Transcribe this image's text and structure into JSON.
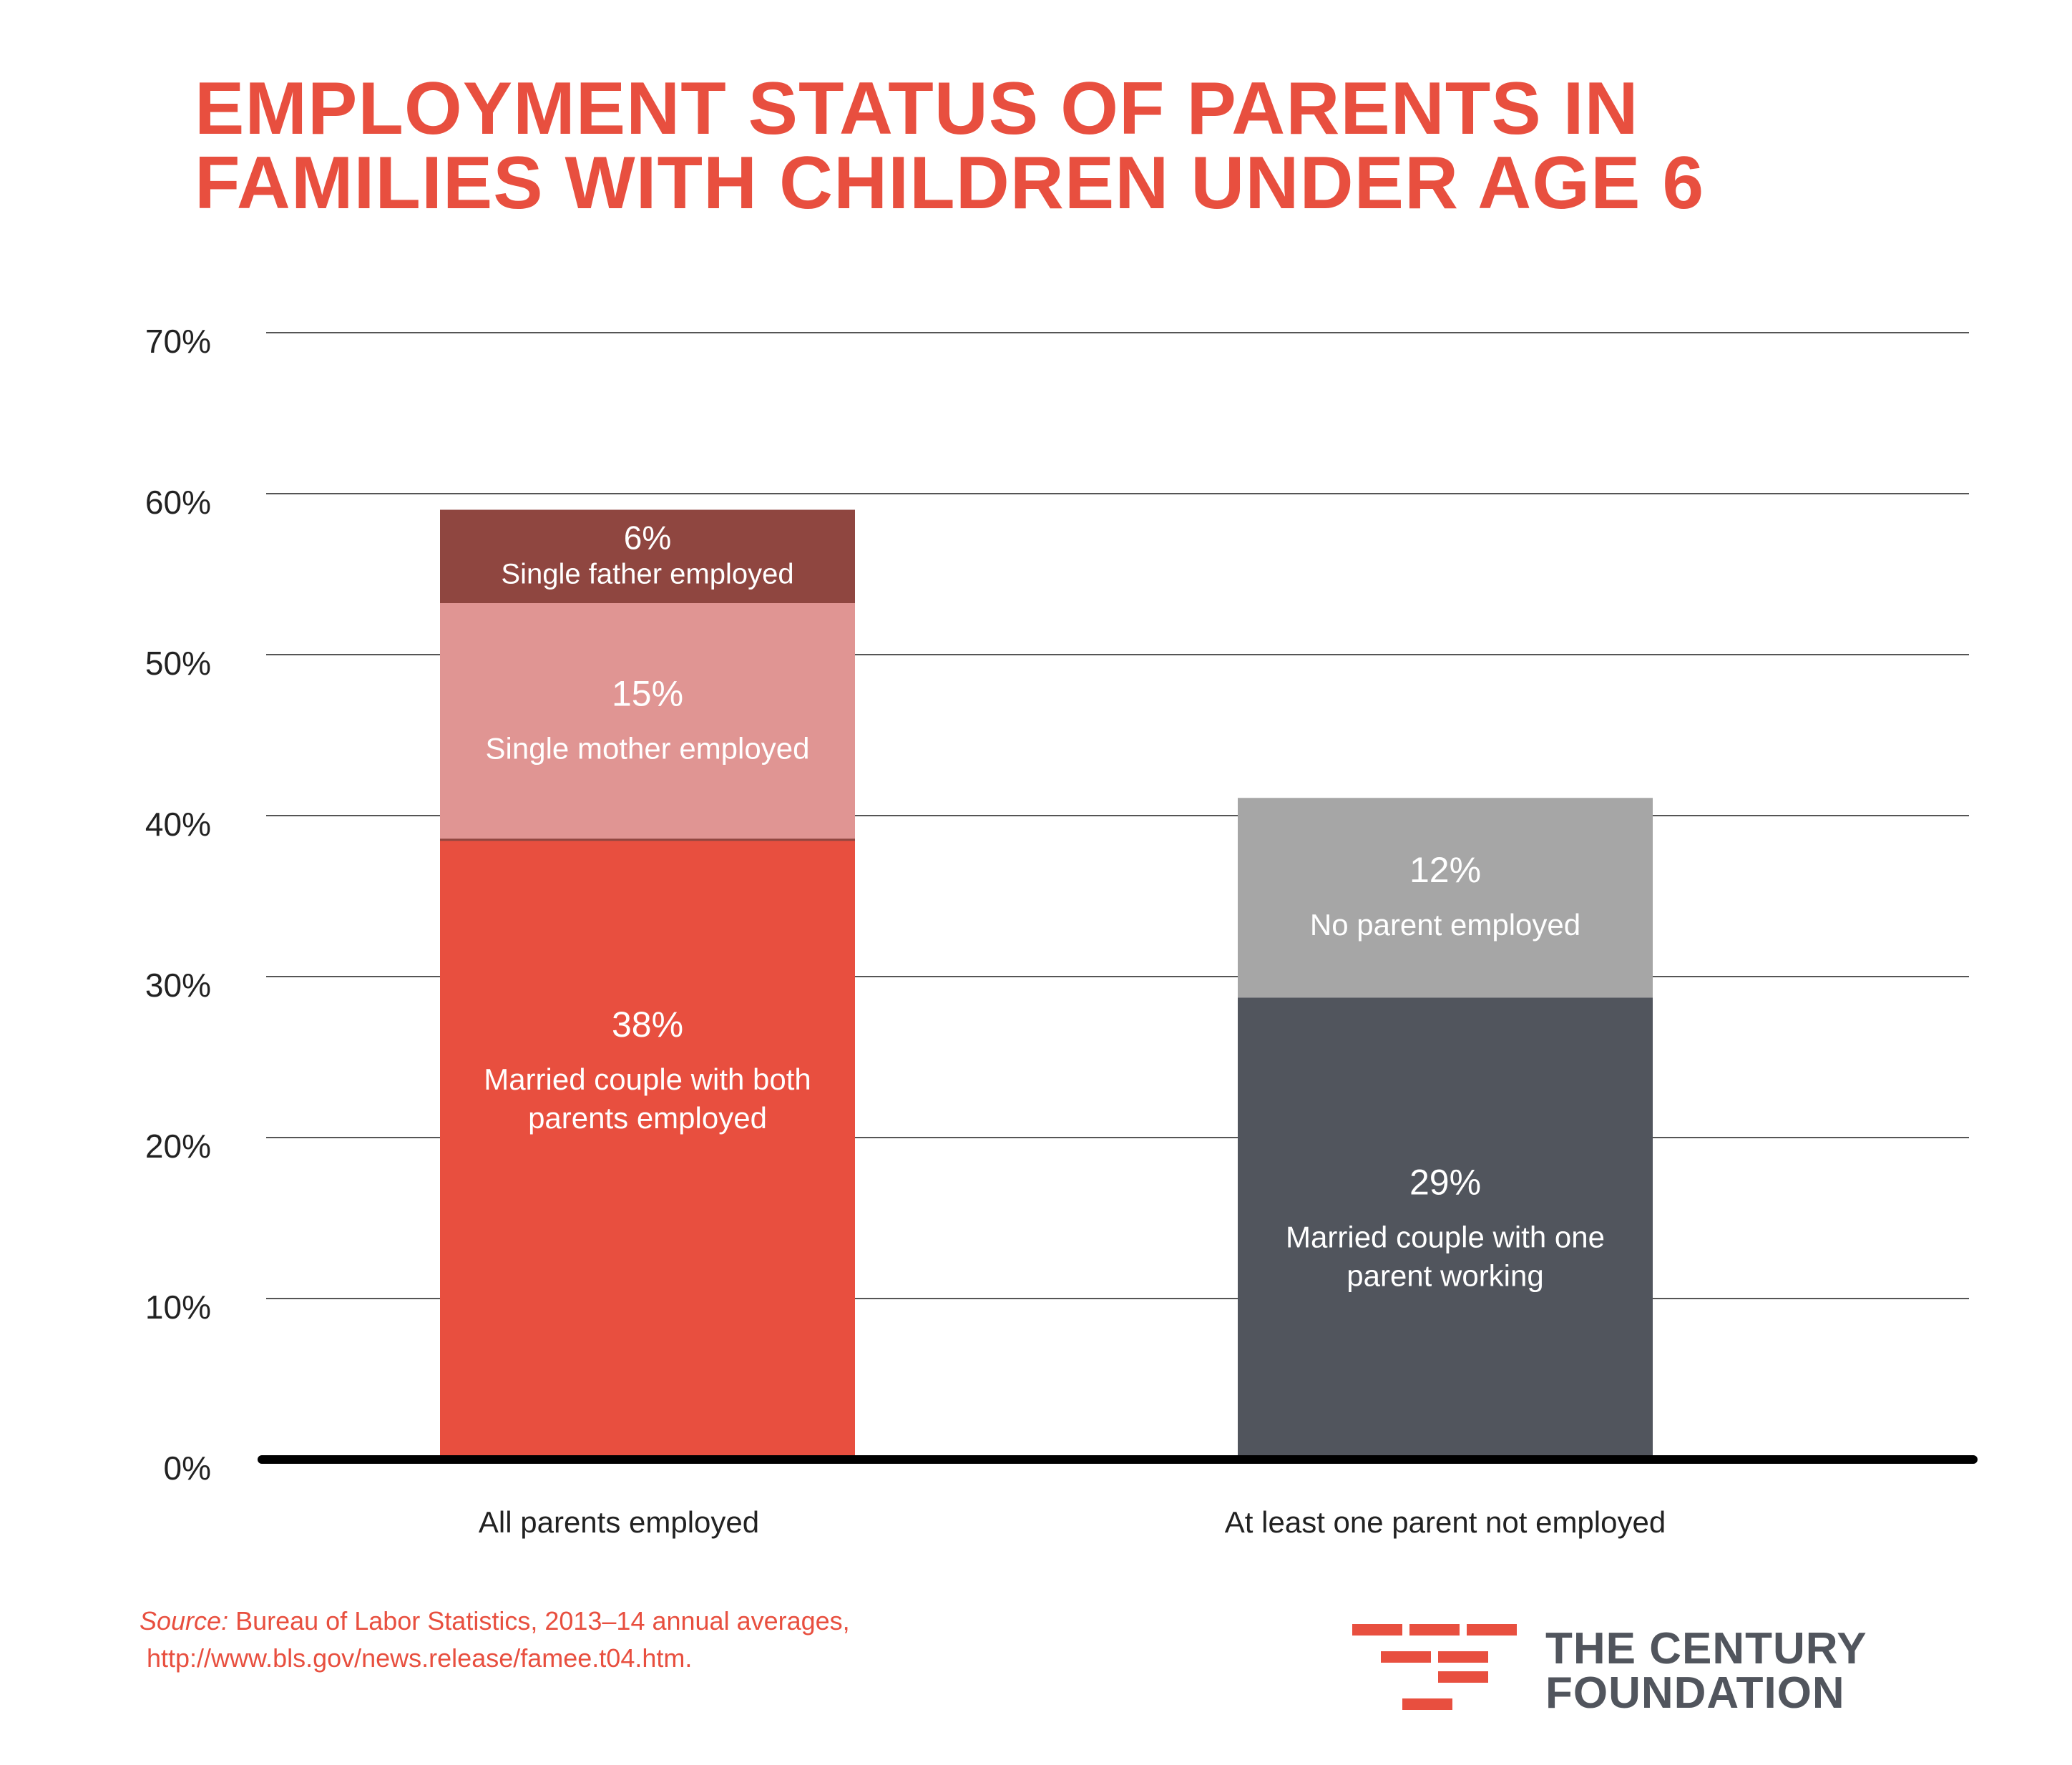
{
  "title_lines": [
    "EMPLOYMENT STATUS OF PARENTS IN",
    "FAMILIES WITH CHILDREN UNDER AGE 6"
  ],
  "colors": {
    "title": "#e84f3f",
    "married_both": "#e84f3f",
    "single_mother": "#e09593",
    "single_father": "#8f4640",
    "married_one": "#51555d",
    "no_parent": "#a6a6a6",
    "gridline": "#555555",
    "baseline": "#000000"
  },
  "chart_data": {
    "type": "bar",
    "stacked": true,
    "title": "EMPLOYMENT STATUS OF PARENTS IN FAMILIES WITH CHILDREN UNDER AGE 6",
    "categories": [
      "All parents employed",
      "At least one parent not employed"
    ],
    "ylim": [
      0,
      70
    ],
    "yticks": [
      0,
      10,
      20,
      30,
      40,
      50,
      60,
      70
    ],
    "ytick_labels": [
      "0%",
      "10%",
      "20%",
      "30%",
      "40%",
      "50%",
      "60%",
      "70%"
    ],
    "grid": true,
    "series": [
      {
        "name": "Married couple with both parents employed",
        "label_lines": [
          "Married couple with both",
          "parents employed"
        ],
        "value_label": "38%",
        "color": "#e84f3f",
        "values": [
          38.5,
          null
        ]
      },
      {
        "name": "Single mother employed",
        "label_lines": [
          "Single mother employed"
        ],
        "value_label": "15%",
        "color": "#e09593",
        "values": [
          14.7,
          null
        ]
      },
      {
        "name": "Single father employed",
        "label_lines": [
          "Single father employed"
        ],
        "value_label": "6%",
        "color": "#8f4640",
        "values": [
          5.8,
          null
        ]
      },
      {
        "name": "Married couple with one parent working",
        "label_lines": [
          "Married couple with one",
          "parent working"
        ],
        "value_label": "29%",
        "color": "#51555d",
        "values": [
          null,
          28.7
        ]
      },
      {
        "name": "No parent employed",
        "label_lines": [
          "No parent employed"
        ],
        "value_label": "12%",
        "color": "#a6a6a6",
        "values": [
          null,
          12.4
        ]
      }
    ]
  },
  "source": {
    "label": "Source:",
    "text": "Bureau of Labor Statistics, 2013–14 annual averages,",
    "url": "http://www.bls.gov/news.release/famee.t04.htm."
  },
  "logo": {
    "line1": "THE CENTURY",
    "line2": "FOUNDATION",
    "mark_color": "#e84f3f",
    "text_color": "#51555d"
  }
}
